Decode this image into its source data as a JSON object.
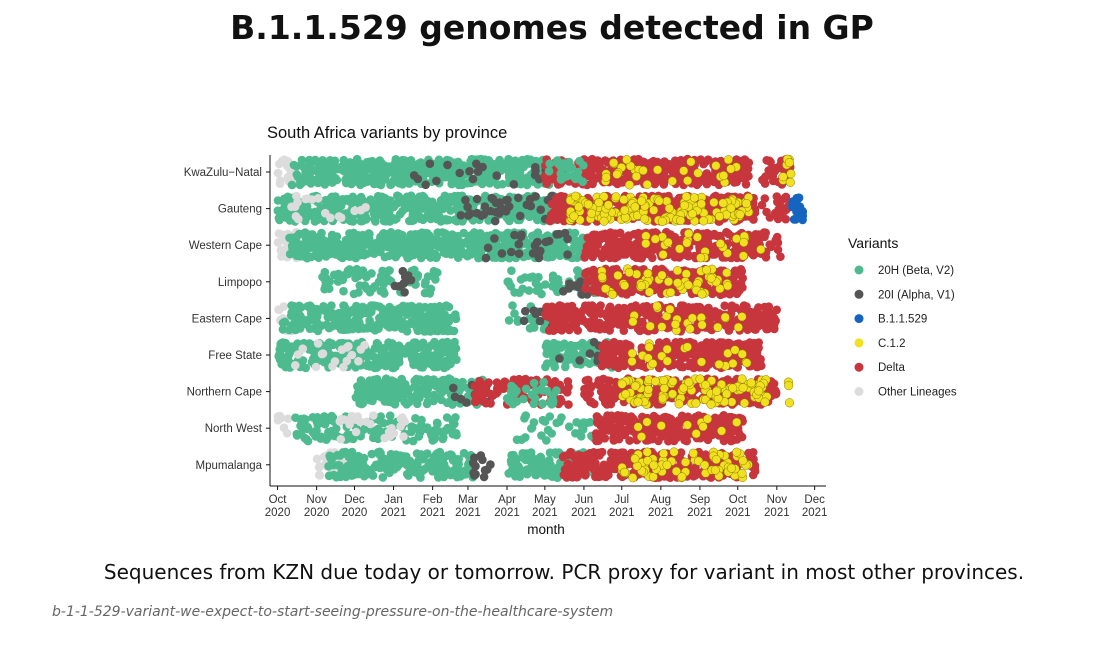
{
  "slide": {
    "title": "B.1.1.529 genomes detected in GP",
    "footnote": "Sequences from KZN due today or tomorrow. PCR proxy for variant in most other provinces."
  },
  "caption": "b-1-1-529-variant-we-expect-to-start-seeing-pressure-on-the-healthcare-system",
  "chart_data": {
    "type": "scatter",
    "title": "South Africa variants by province",
    "xlabel": "month",
    "ylabel": "",
    "x_ticks": [
      "Oct\n2020",
      "Nov\n2020",
      "Dec\n2020",
      "Jan\n2021",
      "Feb\n2021",
      "Mar\n2021",
      "Apr\n2021",
      "May\n2021",
      "Jun\n2021",
      "Jul\n2021",
      "Aug\n2021",
      "Sep\n2021",
      "Oct\n2021",
      "Nov\n2021",
      "Dec\n2021"
    ],
    "xlim": [
      "2020-09-25",
      "2021-12-10"
    ],
    "categories": [
      "KwaZulu−Natal",
      "Gauteng",
      "Western Cape",
      "Limpopo",
      "Eastern Cape",
      "Free State",
      "Northern Cape",
      "North West",
      "Mpumalanga"
    ],
    "legend_title": "Variants",
    "legend_position": "right",
    "series": [
      {
        "name": "20H (Beta, V2)",
        "color": "#4dbb8f"
      },
      {
        "name": "20I (Alpha, V1)",
        "color": "#555555"
      },
      {
        "name": "B.1.1.529",
        "color": "#1565c0"
      },
      {
        "name": "C.1.2",
        "color": "#f0e020"
      },
      {
        "name": "Delta",
        "color": "#c8363d"
      },
      {
        "name": "Other Lineages",
        "color": "#dcdcdc"
      }
    ],
    "segments": {
      "KwaZulu−Natal": [
        {
          "variant": "Other Lineages",
          "start": "2020-10-01",
          "end": "2020-10-15",
          "density": 0.8
        },
        {
          "variant": "20H (Beta, V2)",
          "start": "2020-10-12",
          "end": "2021-05-05",
          "density": 1.0
        },
        {
          "variant": "20I (Alpha, V1)",
          "start": "2021-01-10",
          "end": "2021-05-05",
          "density": 0.08
        },
        {
          "variant": "Delta",
          "start": "2021-05-01",
          "end": "2021-10-10",
          "density": 1.0
        },
        {
          "variant": "20H (Beta, V2)",
          "start": "2021-05-01",
          "end": "2021-06-01",
          "density": 0.35
        },
        {
          "variant": "C.1.2",
          "start": "2021-06-15",
          "end": "2021-10-05",
          "density": 0.12
        },
        {
          "variant": "Delta",
          "start": "2021-10-20",
          "end": "2021-11-12",
          "density": 0.6
        },
        {
          "variant": "C.1.2",
          "start": "2021-11-05",
          "end": "2021-11-13",
          "density": 0.5
        }
      ],
      "Gauteng": [
        {
          "variant": "20H (Beta, V2)",
          "start": "2020-10-01",
          "end": "2021-05-10",
          "density": 0.9
        },
        {
          "variant": "Other Lineages",
          "start": "2020-10-05",
          "end": "2020-12-20",
          "density": 0.1
        },
        {
          "variant": "20I (Alpha, V1)",
          "start": "2021-02-20",
          "end": "2021-05-15",
          "density": 0.2
        },
        {
          "variant": "Delta",
          "start": "2021-05-05",
          "end": "2021-10-15",
          "density": 1.0
        },
        {
          "variant": "C.1.2",
          "start": "2021-05-20",
          "end": "2021-10-10",
          "density": 0.45
        },
        {
          "variant": "Delta",
          "start": "2021-10-20",
          "end": "2021-11-12",
          "density": 0.4
        },
        {
          "variant": "B.1.1.529",
          "start": "2021-11-13",
          "end": "2021-11-22",
          "density": 1.0
        }
      ],
      "Western Cape": [
        {
          "variant": "Other Lineages",
          "start": "2020-10-01",
          "end": "2020-10-18",
          "density": 0.7
        },
        {
          "variant": "20H (Beta, V2)",
          "start": "2020-10-10",
          "end": "2021-06-01",
          "density": 1.0
        },
        {
          "variant": "20I (Alpha, V1)",
          "start": "2021-03-15",
          "end": "2021-05-25",
          "density": 0.15
        },
        {
          "variant": "Delta",
          "start": "2021-06-01",
          "end": "2021-10-25",
          "density": 1.0
        },
        {
          "variant": "C.1.2",
          "start": "2021-07-20",
          "end": "2021-10-20",
          "density": 0.12
        },
        {
          "variant": "Delta",
          "start": "2021-10-25",
          "end": "2021-11-05",
          "density": 0.3
        }
      ],
      "Limpopo": [
        {
          "variant": "20H (Beta, V2)",
          "start": "2020-11-05",
          "end": "2021-02-05",
          "density": 0.35
        },
        {
          "variant": "20I (Alpha, V1)",
          "start": "2021-01-01",
          "end": "2021-01-15",
          "density": 0.3
        },
        {
          "variant": "20H (Beta, V2)",
          "start": "2021-04-01",
          "end": "2021-06-15",
          "density": 0.35
        },
        {
          "variant": "20I (Alpha, V1)",
          "start": "2021-05-15",
          "end": "2021-06-10",
          "density": 0.15
        },
        {
          "variant": "Delta",
          "start": "2021-06-01",
          "end": "2021-10-05",
          "density": 1.0
        },
        {
          "variant": "C.1.2",
          "start": "2021-06-15",
          "end": "2021-09-25",
          "density": 0.25
        }
      ],
      "Eastern Cape": [
        {
          "variant": "Other Lineages",
          "start": "2020-10-01",
          "end": "2020-10-18",
          "density": 0.5
        },
        {
          "variant": "20H (Beta, V2)",
          "start": "2020-10-05",
          "end": "2021-02-20",
          "density": 0.85
        },
        {
          "variant": "20H (Beta, V2)",
          "start": "2021-04-01",
          "end": "2021-05-15",
          "density": 0.25
        },
        {
          "variant": "20I (Alpha, V1)",
          "start": "2021-04-10",
          "end": "2021-05-15",
          "density": 0.15
        },
        {
          "variant": "Delta",
          "start": "2021-05-01",
          "end": "2021-08-01",
          "density": 1.0
        },
        {
          "variant": "Delta",
          "start": "2021-08-05",
          "end": "2021-11-01",
          "density": 0.95
        },
        {
          "variant": "C.1.2",
          "start": "2021-06-15",
          "end": "2021-10-15",
          "density": 0.08
        }
      ],
      "Free State": [
        {
          "variant": "20H (Beta, V2)",
          "start": "2020-10-01",
          "end": "2021-02-20",
          "density": 0.9
        },
        {
          "variant": "Other Lineages",
          "start": "2020-10-15",
          "end": "2020-12-10",
          "density": 0.15
        },
        {
          "variant": "20H (Beta, V2)",
          "start": "2021-05-01",
          "end": "2021-06-25",
          "density": 0.7
        },
        {
          "variant": "20I (Alpha, V1)",
          "start": "2021-05-10",
          "end": "2021-06-20",
          "density": 0.1
        },
        {
          "variant": "Delta",
          "start": "2021-06-15",
          "end": "2021-10-20",
          "density": 1.0
        },
        {
          "variant": "C.1.2",
          "start": "2021-07-01",
          "end": "2021-10-10",
          "density": 0.1
        }
      ],
      "Northern Cape": [
        {
          "variant": "20H (Beta, V2)",
          "start": "2020-12-01",
          "end": "2021-03-15",
          "density": 0.85
        },
        {
          "variant": "20I (Alpha, V1)",
          "start": "2021-02-15",
          "end": "2021-03-20",
          "density": 0.15
        },
        {
          "variant": "Delta",
          "start": "2021-03-05",
          "end": "2021-05-20",
          "density": 0.6
        },
        {
          "variant": "20H (Beta, V2)",
          "start": "2021-04-01",
          "end": "2021-05-15",
          "density": 0.3
        },
        {
          "variant": "Delta",
          "start": "2021-06-01",
          "end": "2021-11-01",
          "density": 0.9
        },
        {
          "variant": "C.1.2",
          "start": "2021-07-01",
          "end": "2021-10-25",
          "density": 0.45
        },
        {
          "variant": "C.1.2",
          "start": "2021-11-10",
          "end": "2021-11-13",
          "density": 0.5
        }
      ],
      "North West": [
        {
          "variant": "Other Lineages",
          "start": "2020-10-01",
          "end": "2020-10-10",
          "density": 0.4
        },
        {
          "variant": "20H (Beta, V2)",
          "start": "2020-10-15",
          "end": "2021-02-20",
          "density": 0.45
        },
        {
          "variant": "Other Lineages",
          "start": "2020-11-15",
          "end": "2021-01-10",
          "density": 0.2
        },
        {
          "variant": "20H (Beta, V2)",
          "start": "2021-04-01",
          "end": "2021-06-10",
          "density": 0.2
        },
        {
          "variant": "Delta",
          "start": "2021-06-10",
          "end": "2021-10-05",
          "density": 1.0
        },
        {
          "variant": "C.1.2",
          "start": "2021-07-10",
          "end": "2021-10-01",
          "density": 0.06
        }
      ],
      "Mpumalanga": [
        {
          "variant": "Other Lineages",
          "start": "2020-11-01",
          "end": "2020-11-30",
          "density": 0.5
        },
        {
          "variant": "20H (Beta, V2)",
          "start": "2020-11-10",
          "end": "2021-03-05",
          "density": 0.75
        },
        {
          "variant": "20I (Alpha, V1)",
          "start": "2021-03-05",
          "end": "2021-03-20",
          "density": 0.4
        },
        {
          "variant": "20H (Beta, V2)",
          "start": "2021-04-01",
          "end": "2021-06-05",
          "density": 0.75
        },
        {
          "variant": "Delta",
          "start": "2021-05-15",
          "end": "2021-10-15",
          "density": 1.0
        },
        {
          "variant": "C.1.2",
          "start": "2021-07-01",
          "end": "2021-10-10",
          "density": 0.3
        }
      ]
    }
  }
}
